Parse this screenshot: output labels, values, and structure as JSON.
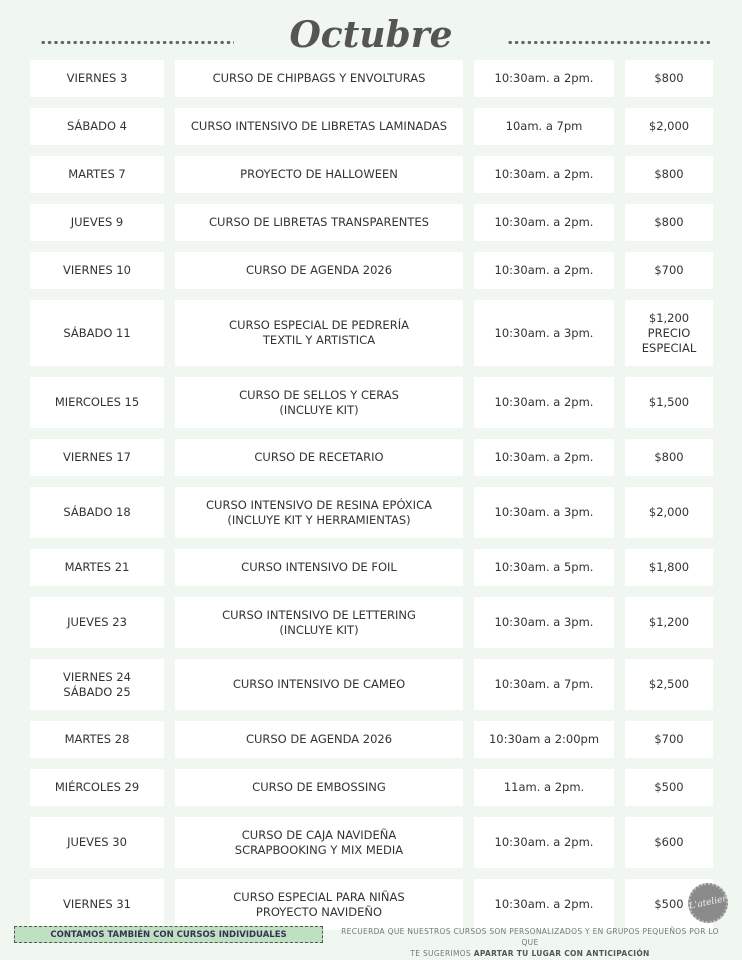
{
  "title": "Octubre",
  "schedule": [
    {
      "day": "VIERNES 3",
      "course": "CURSO DE CHIPBAGS Y ENVOLTURAS",
      "time": "10:30am. a  2pm.",
      "price": "$800",
      "size": 1
    },
    {
      "day": "SÁBADO 4",
      "course": "CURSO INTENSIVO DE LIBRETAS LAMINADAS",
      "time": "10am. a  7pm",
      "price": "$2,000",
      "size": 1
    },
    {
      "day": "MARTES 7",
      "course": "PROYECTO DE HALLOWEEN",
      "time": "10:30am. a 2pm.",
      "price": "$800",
      "size": 1
    },
    {
      "day": "JUEVES 9",
      "course": "CURSO DE LIBRETAS TRANSPARENTES",
      "time": "10:30am. a 2pm.",
      "price": "$800",
      "size": 1
    },
    {
      "day": "VIERNES 10",
      "course": "CURSO DE AGENDA 2026",
      "time": "10:30am. a 2pm.",
      "price": "$700",
      "size": 1
    },
    {
      "day": "SÁBADO 11",
      "course": "CURSO ESPECIAL DE PEDRERÍA\nTEXTIL Y ARTISTICA",
      "time": "10:30am. a 3pm.",
      "price": "$1,200\nPRECIO\nESPECIAL",
      "size": 3
    },
    {
      "day": "MIERCOLES 15",
      "course": "CURSO DE SELLOS Y CERAS\n(INCLUYE KIT)",
      "time": "10:30am. a 2pm.",
      "price": "$1,500",
      "size": 2
    },
    {
      "day": "VIERNES 17",
      "course": "CURSO DE RECETARIO",
      "time": "10:30am. a 2pm.",
      "price": "$800",
      "size": 1
    },
    {
      "day": "SÁBADO 18",
      "course": "CURSO INTENSIVO DE RESINA EPÓXICA\n(INCLUYE KIT Y HERRAMIENTAS)",
      "time": "10:30am. a 3pm.",
      "price": "$2,000",
      "size": 2
    },
    {
      "day": "MARTES 21",
      "course": "CURSO INTENSIVO DE FOIL",
      "time": "10:30am. a 5pm.",
      "price": "$1,800",
      "size": 1
    },
    {
      "day": "JUEVES 23",
      "course": "CURSO INTENSIVO DE LETTERING\n(INCLUYE KIT)",
      "time": "10:30am. a 3pm.",
      "price": "$1,200",
      "size": 2
    },
    {
      "day": "VIERNES 24\nSÁBADO 25",
      "course": "CURSO INTENSIVO DE CAMEO",
      "time": "10:30am. a 7pm.",
      "price": "$2,500",
      "size": 2
    },
    {
      "day": "MARTES 28",
      "course": "CURSO DE AGENDA 2026",
      "time": "10:30am a 2:00pm",
      "price": "$700",
      "size": 1
    },
    {
      "day": "MIÉRCOLES 29",
      "course": "CURSO DE EMBOSSING",
      "time": "11am. a 2pm.",
      "price": "$500",
      "size": 1
    },
    {
      "day": "JUEVES 30",
      "course": "CURSO DE CAJA NAVIDEÑA\nSCRAPBOOKING Y MIX MEDIA",
      "time": "10:30am.  a 2pm.",
      "price": "$600",
      "size": 2
    },
    {
      "day": "VIERNES 31",
      "course": "CURSO ESPECIAL PARA NIÑAS\nPROYECTO NAVIDEÑO",
      "time": "10:30am. a 2pm.",
      "price": "$500",
      "size": 2
    }
  ],
  "footer": {
    "individual": "CONTAMOS TAMBIÉN CON CURSOS INDIVIDUALES",
    "note_line1": "RECUERDA QUE NUESTROS CURSOS SON PERSONALIZADOS  Y EN GRUPOS PEQUEÑOS  POR LO QUE",
    "note_line2_prefix": "TE SUGERIMOS ",
    "note_line2_bold": "APARTAR TU LUGAR CON ANTICIPACIÓN"
  },
  "logo": {
    "text": "L'atelier"
  },
  "colors": {
    "background": "#f0f7f1",
    "accent": "#bfe0c1"
  }
}
